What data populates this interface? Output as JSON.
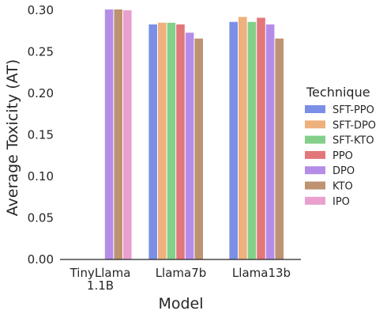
{
  "chart_data": {
    "type": "bar",
    "title": "",
    "xlabel": "Model",
    "ylabel": "Average Toxicity (AT)",
    "ylim": [
      0,
      0.3
    ],
    "yticks": [
      "0.00",
      "0.05",
      "0.10",
      "0.15",
      "0.20",
      "0.25",
      "0.30"
    ],
    "categories": [
      "TinyLlama\n1.1B",
      "Llama7b",
      "Llama13b"
    ],
    "legend_title": "Technique",
    "legend_position": "right",
    "grid": false,
    "series": [
      {
        "name": "SFT-PPO",
        "color": "#7b8fe6",
        "values": [
          null,
          0.283,
          0.286
        ]
      },
      {
        "name": "SFT-DPO",
        "color": "#eeb07c",
        "values": [
          null,
          0.285,
          0.292
        ]
      },
      {
        "name": "SFT-KTO",
        "color": "#84cf8a",
        "values": [
          null,
          0.285,
          0.286
        ]
      },
      {
        "name": "PPO",
        "color": "#e2777b",
        "values": [
          null,
          0.283,
          0.291
        ]
      },
      {
        "name": "DPO",
        "color": "#b58de8",
        "values": [
          0.301,
          0.273,
          0.283
        ]
      },
      {
        "name": "KTO",
        "color": "#bd9372",
        "values": [
          0.301,
          0.266,
          0.266
        ]
      },
      {
        "name": "IPO",
        "color": "#e9a0cf",
        "values": [
          0.3,
          null,
          null
        ]
      }
    ]
  }
}
